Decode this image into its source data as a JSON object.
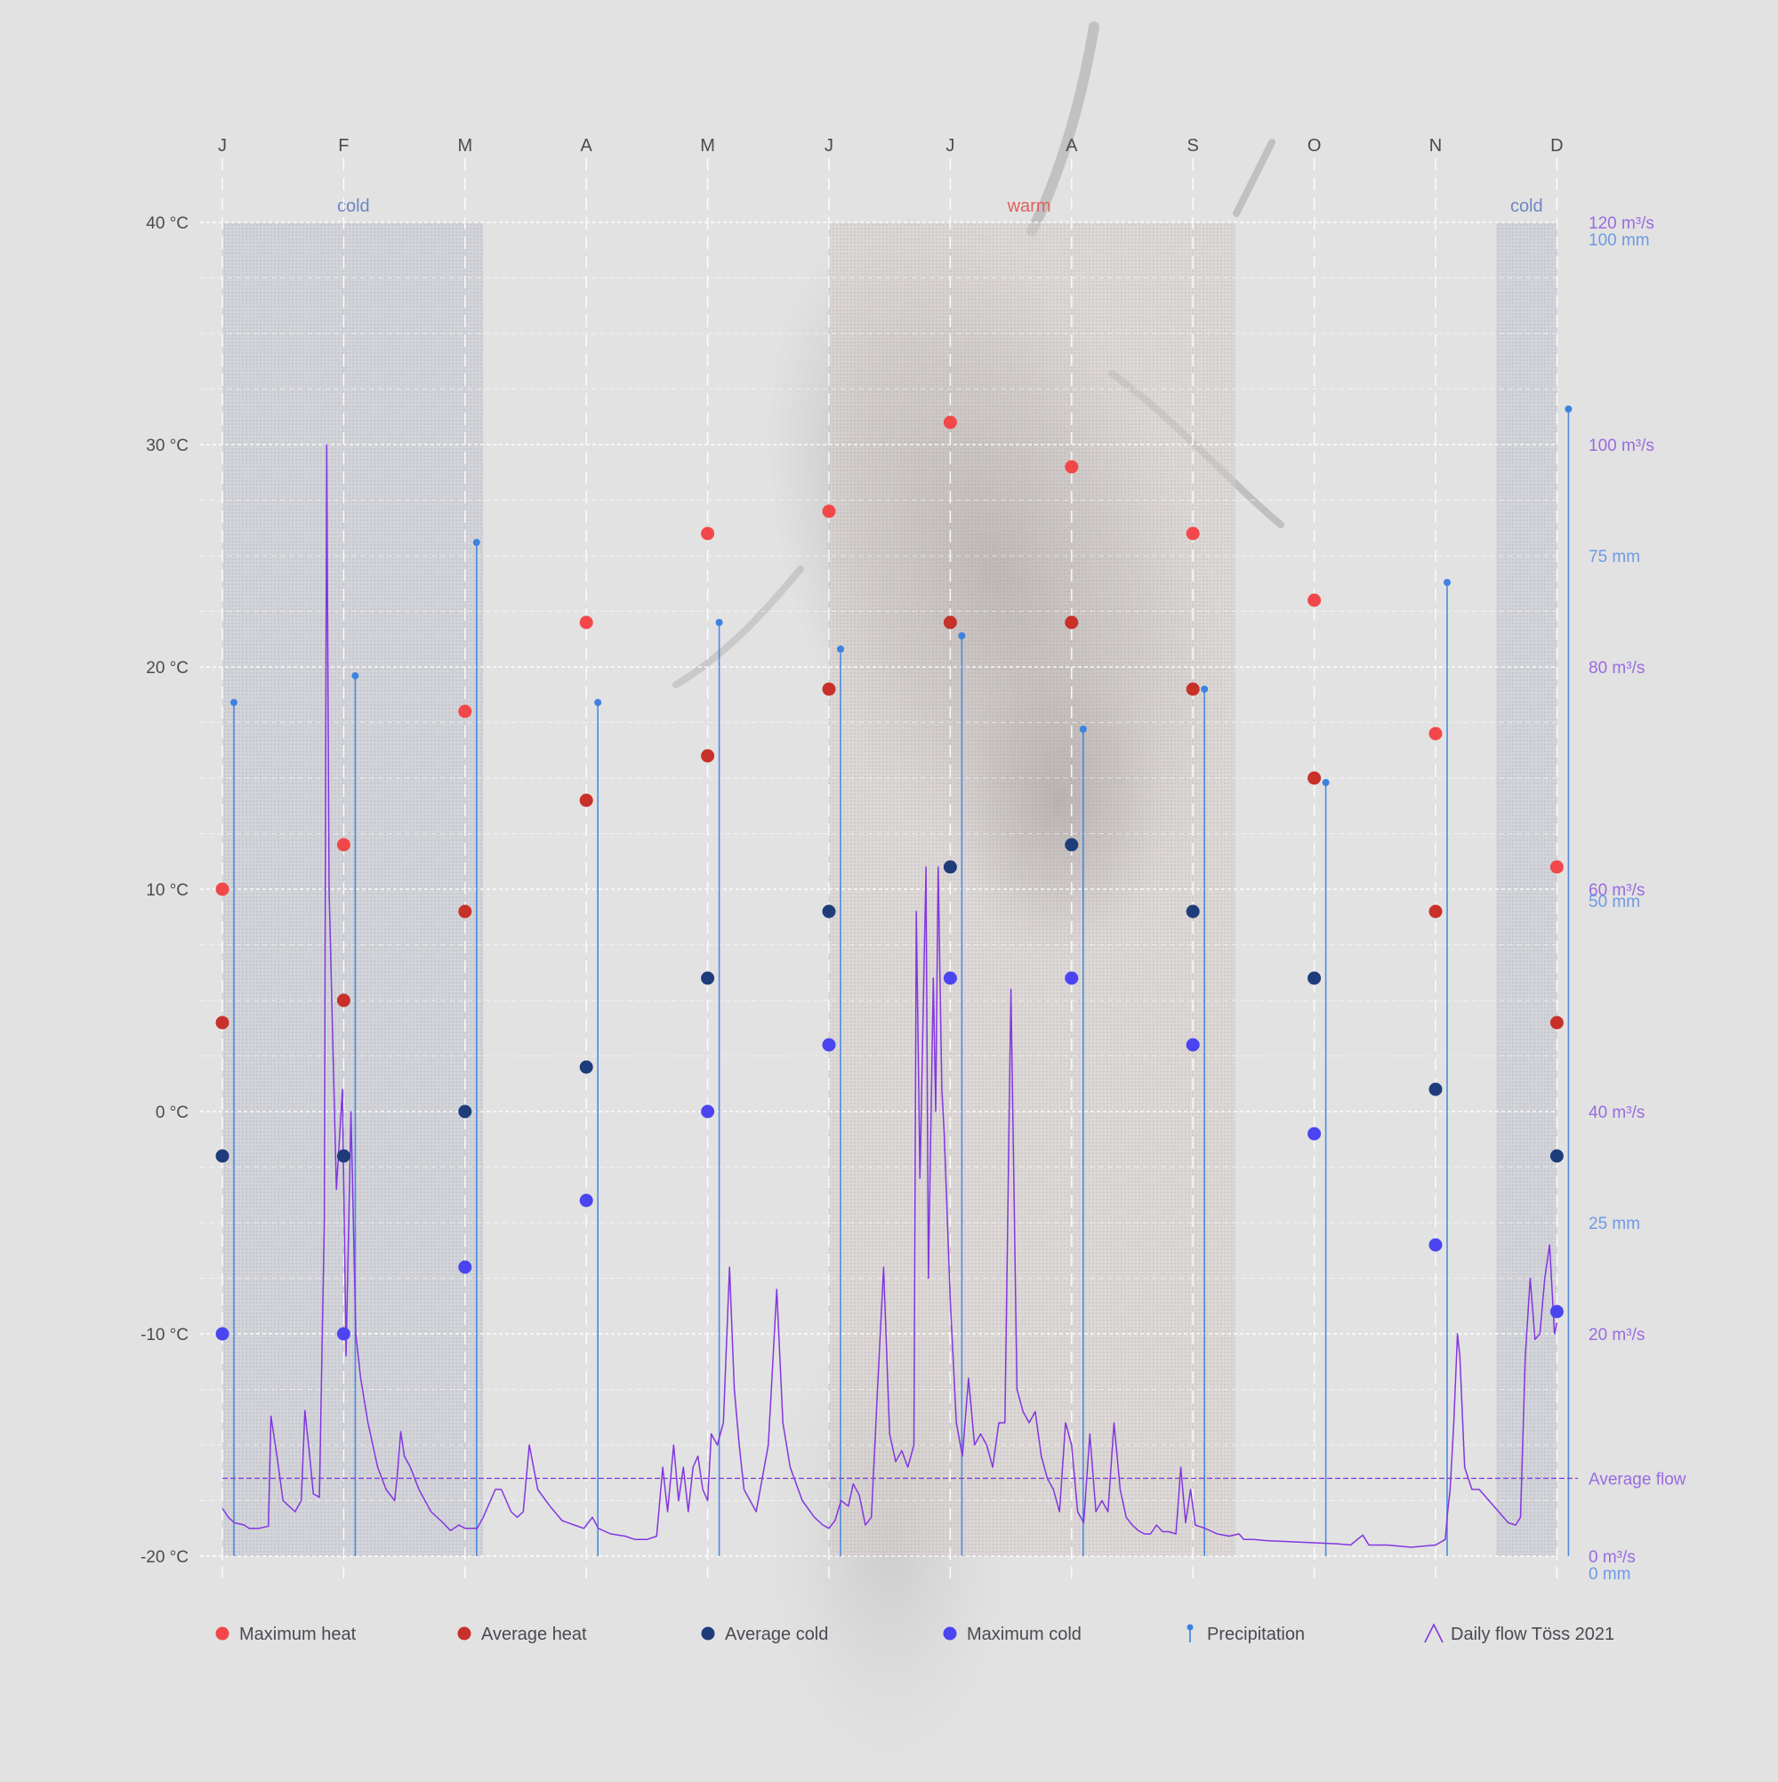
{
  "chart_data": {
    "type": "scatter",
    "months": [
      "J",
      "F",
      "M",
      "A",
      "M",
      "J",
      "J",
      "A",
      "S",
      "O",
      "N",
      "D"
    ],
    "y_left": {
      "range": [
        -20,
        40
      ],
      "ticks": [
        -20,
        -10,
        0,
        10,
        20,
        30,
        40
      ],
      "tick_labels": [
        "-20 °C",
        "-10 °C",
        "0 °C",
        "10 °C",
        "20 °C",
        "30 °C",
        "40 °C"
      ]
    },
    "y_right_flow": {
      "range": [
        0,
        120
      ],
      "ticks": [
        0,
        20,
        40,
        60,
        80,
        100,
        120
      ],
      "tick_labels": [
        "0 m³/s",
        "20 m³/s",
        "40 m³/s",
        "60 m³/s",
        "80 m³/s",
        "100 m³/s",
        "120 m³/s"
      ]
    },
    "y_right_precip": {
      "range": [
        0,
        100
      ],
      "ticks": [
        0,
        25,
        50,
        75,
        100
      ],
      "tick_labels": [
        "0 mm",
        "25 mm",
        "50 mm",
        "75 mm",
        "100 mm"
      ]
    },
    "season_bands": [
      {
        "label": "cold",
        "start": 0,
        "end": 2.15,
        "color": "#c7c9d2",
        "text_color": "#6e86c4"
      },
      {
        "label": "warm",
        "start": 5,
        "end": 8.35,
        "color": "#d9cfcc",
        "text_color": "#e0615a"
      },
      {
        "label": "cold",
        "start": 10.5,
        "end": 11,
        "color": "#c7c9d2",
        "text_color": "#6e86c4"
      }
    ],
    "series": [
      {
        "name": "Maximum heat",
        "color": "#f2474a",
        "values": [
          10,
          12,
          18,
          22,
          26,
          27,
          31,
          29,
          26,
          23,
          17,
          11
        ]
      },
      {
        "name": "Average heat",
        "color": "#c8302a",
        "values": [
          4,
          5,
          9,
          14,
          16,
          19,
          22,
          22,
          19,
          15,
          9,
          4
        ]
      },
      {
        "name": "Average cold",
        "color": "#1f3c7a",
        "values": [
          -2,
          -2,
          0,
          2,
          6,
          9,
          11,
          12,
          9,
          6,
          1,
          -2
        ]
      },
      {
        "name": "Maximum cold",
        "color": "#4a45f0",
        "values": [
          -10,
          -10,
          -7,
          -4,
          0,
          3,
          6,
          6,
          3,
          -1,
          -6,
          -9
        ]
      }
    ],
    "precipitation": {
      "name": "Precipitation",
      "unit": "mm",
      "color": "#3d82e0",
      "values": [
        64,
        66,
        76,
        64,
        70,
        68,
        69,
        62,
        65,
        58,
        73,
        86
      ]
    },
    "daily_flow": {
      "name": "Daily flow Töss 2021",
      "unit": "m³/s",
      "color": "#8336e0",
      "average_label": "Average flow",
      "average": 7,
      "points": [
        [
          0.0,
          4.3
        ],
        [
          0.05,
          3.5
        ],
        [
          0.1,
          3.0
        ],
        [
          0.18,
          2.8
        ],
        [
          0.22,
          2.5
        ],
        [
          0.3,
          2.5
        ],
        [
          0.38,
          2.7
        ],
        [
          0.4,
          12.6
        ],
        [
          0.45,
          9.0
        ],
        [
          0.5,
          5.0
        ],
        [
          0.55,
          4.5
        ],
        [
          0.6,
          4.0
        ],
        [
          0.65,
          5.0
        ],
        [
          0.68,
          13.1
        ],
        [
          0.72,
          9.0
        ],
        [
          0.75,
          5.6
        ],
        [
          0.8,
          5.3
        ],
        [
          0.84,
          30.0
        ],
        [
          0.86,
          100.0
        ],
        [
          0.88,
          60.0
        ],
        [
          0.94,
          33.0
        ],
        [
          0.99,
          42.0
        ],
        [
          1.02,
          18.0
        ],
        [
          1.06,
          40.0
        ],
        [
          1.1,
          20.0
        ],
        [
          1.14,
          16.0
        ],
        [
          1.2,
          12.0
        ],
        [
          1.28,
          8.0
        ],
        [
          1.35,
          6.0
        ],
        [
          1.42,
          5.0
        ],
        [
          1.44,
          7.0
        ],
        [
          1.47,
          11.2
        ],
        [
          1.5,
          9.0
        ],
        [
          1.55,
          8.0
        ],
        [
          1.62,
          6.0
        ],
        [
          1.72,
          4.0
        ],
        [
          1.82,
          3.0
        ],
        [
          1.88,
          2.3
        ],
        [
          1.95,
          2.8
        ],
        [
          2.0,
          2.5
        ],
        [
          2.05,
          2.5
        ],
        [
          2.1,
          2.5
        ],
        [
          2.15,
          3.5
        ],
        [
          2.25,
          6.0
        ],
        [
          2.3,
          6.0
        ],
        [
          2.38,
          4.0
        ],
        [
          2.43,
          3.5
        ],
        [
          2.48,
          4.0
        ],
        [
          2.53,
          10.0
        ],
        [
          2.6,
          6.0
        ],
        [
          2.7,
          4.5
        ],
        [
          2.8,
          3.2
        ],
        [
          2.9,
          2.8
        ],
        [
          2.98,
          2.5
        ],
        [
          3.05,
          3.5
        ],
        [
          3.1,
          2.5
        ],
        [
          3.2,
          2.0
        ],
        [
          3.32,
          1.8
        ],
        [
          3.4,
          1.5
        ],
        [
          3.5,
          1.5
        ],
        [
          3.58,
          1.8
        ],
        [
          3.63,
          8.0
        ],
        [
          3.67,
          4.0
        ],
        [
          3.72,
          10.0
        ],
        [
          3.76,
          5.0
        ],
        [
          3.8,
          8.0
        ],
        [
          3.84,
          4.0
        ],
        [
          3.88,
          8.0
        ],
        [
          3.92,
          9.0
        ],
        [
          3.96,
          6.0
        ],
        [
          4.0,
          5.0
        ],
        [
          4.03,
          11.0
        ],
        [
          4.08,
          10.0
        ],
        [
          4.13,
          12.0
        ],
        [
          4.18,
          26.0
        ],
        [
          4.22,
          15.0
        ],
        [
          4.26,
          10.0
        ],
        [
          4.3,
          6.0
        ],
        [
          4.35,
          5.0
        ],
        [
          4.4,
          4.0
        ],
        [
          4.5,
          10.0
        ],
        [
          4.53,
          16.0
        ],
        [
          4.57,
          24.0
        ],
        [
          4.62,
          12.0
        ],
        [
          4.68,
          8.0
        ],
        [
          4.78,
          5.0
        ],
        [
          4.88,
          3.5
        ],
        [
          4.95,
          2.8
        ],
        [
          5.0,
          2.5
        ],
        [
          5.05,
          3.2
        ],
        [
          5.1,
          5.0
        ],
        [
          5.16,
          4.5
        ],
        [
          5.2,
          6.5
        ],
        [
          5.25,
          5.5
        ],
        [
          5.3,
          2.8
        ],
        [
          5.35,
          3.5
        ],
        [
          5.4,
          15.0
        ],
        [
          5.45,
          26.0
        ],
        [
          5.5,
          11.0
        ],
        [
          5.55,
          8.5
        ],
        [
          5.6,
          9.5
        ],
        [
          5.65,
          8.0
        ],
        [
          5.7,
          10.0
        ],
        [
          5.72,
          58.0
        ],
        [
          5.75,
          34.0
        ],
        [
          5.8,
          62.0
        ],
        [
          5.82,
          25.0
        ],
        [
          5.86,
          52.0
        ],
        [
          5.88,
          40.0
        ],
        [
          5.9,
          62.0
        ],
        [
          5.93,
          42.0
        ],
        [
          5.95,
          38.0
        ],
        [
          6.0,
          23.0
        ],
        [
          6.05,
          12.0
        ],
        [
          6.1,
          9.0
        ],
        [
          6.15,
          16.0
        ],
        [
          6.2,
          10.0
        ],
        [
          6.25,
          11.0
        ],
        [
          6.3,
          10.0
        ],
        [
          6.35,
          8.0
        ],
        [
          6.4,
          12.0
        ],
        [
          6.45,
          12.0
        ],
        [
          6.5,
          51.0
        ],
        [
          6.55,
          15.0
        ],
        [
          6.6,
          13.0
        ],
        [
          6.65,
          12.0
        ],
        [
          6.7,
          13.0
        ],
        [
          6.75,
          9.0
        ],
        [
          6.8,
          7.0
        ],
        [
          6.85,
          6.0
        ],
        [
          6.9,
          4.0
        ],
        [
          6.95,
          12.0
        ],
        [
          7.0,
          10.0
        ],
        [
          7.05,
          4.0
        ],
        [
          7.1,
          3.0
        ],
        [
          7.15,
          11.0
        ],
        [
          7.2,
          4.0
        ],
        [
          7.25,
          5.0
        ],
        [
          7.3,
          4.0
        ],
        [
          7.35,
          12.0
        ],
        [
          7.4,
          6.0
        ],
        [
          7.45,
          3.5
        ],
        [
          7.5,
          2.8
        ],
        [
          7.55,
          2.3
        ],
        [
          7.6,
          2.0
        ],
        [
          7.65,
          2.0
        ],
        [
          7.7,
          2.8
        ],
        [
          7.75,
          2.2
        ],
        [
          7.8,
          2.2
        ],
        [
          7.86,
          2.0
        ],
        [
          7.9,
          8.0
        ],
        [
          7.94,
          3.0
        ],
        [
          7.98,
          6.0
        ],
        [
          8.02,
          2.8
        ],
        [
          8.1,
          2.5
        ],
        [
          8.2,
          2.0
        ],
        [
          8.3,
          1.8
        ],
        [
          8.38,
          2.0
        ],
        [
          8.42,
          1.5
        ],
        [
          8.5,
          1.5
        ],
        [
          8.6,
          1.4
        ],
        [
          8.8,
          1.3
        ],
        [
          9.0,
          1.2
        ],
        [
          9.2,
          1.1
        ],
        [
          9.3,
          1.0
        ],
        [
          9.4,
          1.9
        ],
        [
          9.45,
          1.0
        ],
        [
          9.6,
          1.0
        ],
        [
          9.8,
          0.8
        ],
        [
          10.0,
          1.0
        ],
        [
          10.08,
          1.5
        ],
        [
          10.1,
          4.0
        ],
        [
          10.12,
          6.0
        ],
        [
          10.15,
          12.0
        ],
        [
          10.18,
          20.0
        ],
        [
          10.2,
          18.0
        ],
        [
          10.24,
          8.0
        ],
        [
          10.3,
          6.0
        ],
        [
          10.36,
          6.0
        ],
        [
          10.44,
          5.0
        ],
        [
          10.52,
          4.0
        ],
        [
          10.6,
          3.0
        ],
        [
          10.66,
          2.8
        ],
        [
          10.7,
          3.5
        ],
        [
          10.74,
          18.0
        ],
        [
          10.78,
          25.0
        ],
        [
          10.82,
          19.5
        ],
        [
          10.86,
          20.0
        ],
        [
          10.9,
          25.0
        ],
        [
          10.94,
          28.0
        ],
        [
          10.98,
          20.0
        ],
        [
          11.0,
          21.0
        ]
      ]
    },
    "legend": [
      "Maximum heat",
      "Average heat",
      "Average cold",
      "Maximum cold",
      "Precipitation",
      "Daily flow Töss 2021"
    ],
    "legend_position": "bottom"
  }
}
